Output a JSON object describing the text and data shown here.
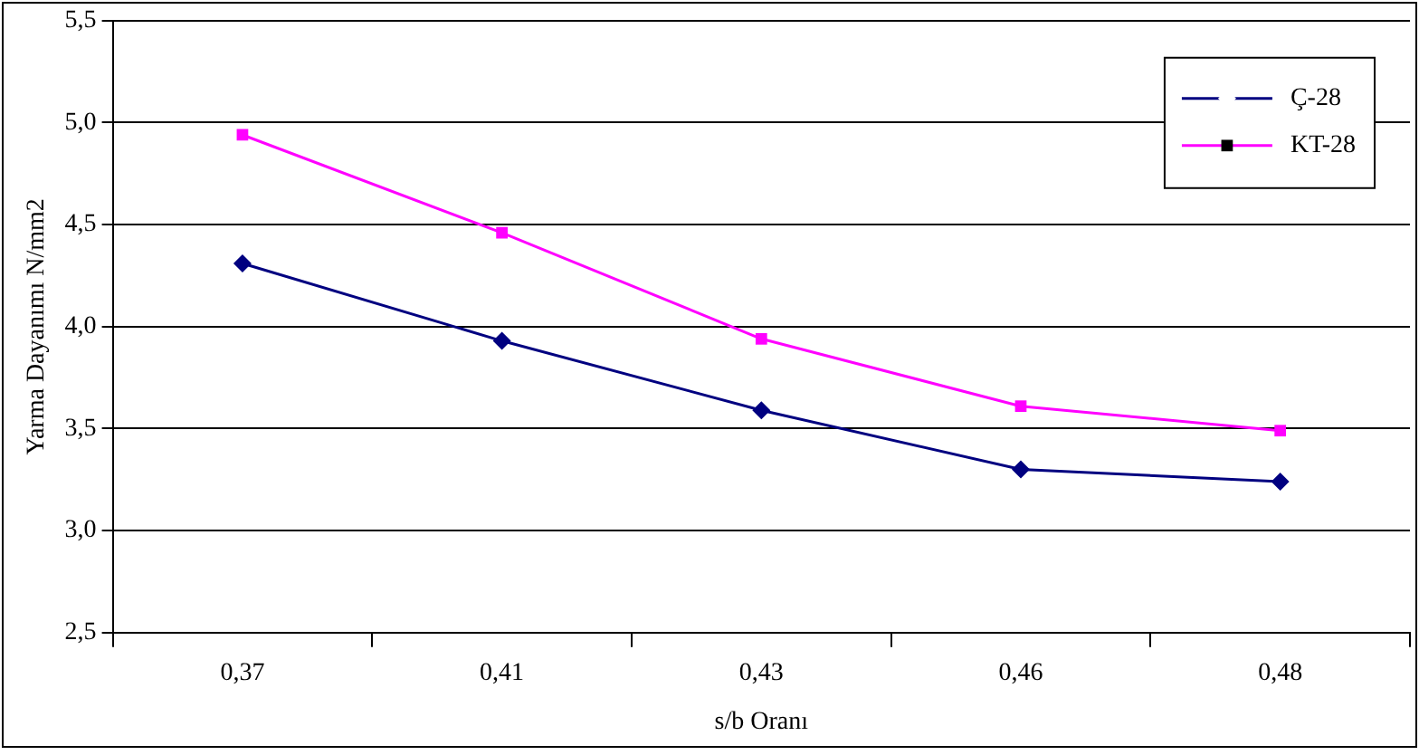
{
  "chart_data": {
    "type": "line",
    "xlabel": "s/b Oranı",
    "ylabel": "Yarma Dayanımı N/mm2",
    "categories": [
      "0,37",
      "0,41",
      "0,43",
      "0,46",
      "0,48"
    ],
    "series": [
      {
        "name": "Ç-28",
        "color": "#000080",
        "marker": "diamond",
        "values": [
          4.31,
          3.93,
          3.59,
          3.3,
          3.24
        ]
      },
      {
        "name": "KT-28",
        "color": "#ff00ff",
        "marker": "square",
        "values": [
          4.94,
          4.46,
          3.94,
          3.61,
          3.49
        ]
      }
    ],
    "ylim": [
      2.5,
      5.5
    ],
    "yticks": [
      {
        "value": 2.5,
        "label": "2,5"
      },
      {
        "value": 3,
        "label": "3,0"
      },
      {
        "value": 3.5,
        "label": "3,5"
      },
      {
        "value": 4,
        "label": "4,0"
      },
      {
        "value": 4.5,
        "label": "4,5"
      },
      {
        "value": 5,
        "label": "5,0"
      },
      {
        "value": 5.5,
        "label": "5,5"
      }
    ],
    "grid": "y",
    "legend": "top right",
    "line_style": "solid"
  }
}
